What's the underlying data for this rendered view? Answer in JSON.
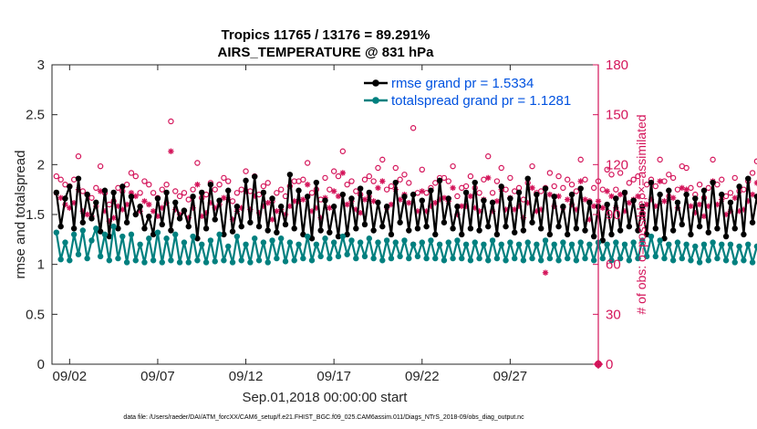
{
  "chart_data": {
    "type": "line",
    "title": "Tropics 11765 / 13176 = 89.291%",
    "subtitle": "AIRS_TEMPERATURE @ 831 hPa",
    "xlabel": "Sep.01,2018 00:00:00 start",
    "ylabel_left": "rmse and totalspread",
    "ylabel_right": "# of obs: o=possible; ×=assimilated",
    "footnote": "data file: /Users/raeder/DAI/ATM_forcXX/CAM6_setup/f.e21.FHIST_BGC.f09_025.CAM6assim.011/Diags_NTrS_2018-09/obs_diag_output.nc",
    "xlim": [
      1.0,
      32.0
    ],
    "ylim_left": [
      0,
      3
    ],
    "ylim_right": [
      0,
      180
    ],
    "x_ticks": [
      {
        "value": 2,
        "label": "09/02"
      },
      {
        "value": 7,
        "label": "09/07"
      },
      {
        "value": 12,
        "label": "09/12"
      },
      {
        "value": 17,
        "label": "09/17"
      },
      {
        "value": 22,
        "label": "09/22"
      },
      {
        "value": 27,
        "label": "09/27"
      }
    ],
    "y_ticks_left": [
      "0",
      "0.5",
      "1",
      "1.5",
      "2",
      "2.5",
      "3"
    ],
    "y_ticks_right": [
      "0",
      "30",
      "60",
      "90",
      "120",
      "150",
      "180"
    ],
    "x_start": 1.25,
    "x_step": 0.25,
    "grid": false,
    "legend_position": "top-right",
    "series": [
      {
        "name": "rmse grand pr = 1.5334",
        "axis": "left",
        "color": "#000000",
        "marker": "filled-circle",
        "values": [
          1.72,
          1.38,
          1.66,
          1.78,
          1.36,
          1.86,
          1.42,
          1.7,
          1.46,
          1.62,
          1.33,
          1.74,
          1.28,
          1.72,
          1.36,
          1.78,
          1.42,
          1.68,
          1.5,
          1.58,
          1.36,
          1.48,
          1.3,
          1.66,
          1.4,
          1.72,
          1.34,
          1.62,
          1.46,
          1.54,
          1.38,
          1.68,
          1.26,
          1.72,
          1.36,
          1.8,
          1.45,
          1.64,
          1.3,
          1.74,
          1.33,
          1.58,
          1.38,
          1.84,
          1.42,
          1.88,
          1.38,
          1.72,
          1.34,
          1.66,
          1.32,
          1.58,
          1.4,
          1.9,
          1.36,
          1.74,
          1.3,
          1.68,
          1.26,
          1.82,
          1.34,
          1.64,
          1.32,
          1.58,
          1.28,
          1.7,
          1.3,
          1.66,
          1.36,
          1.76,
          1.4,
          1.72,
          1.34,
          1.62,
          1.38,
          1.58,
          1.3,
          1.82,
          1.42,
          1.68,
          1.34,
          1.7,
          1.36,
          1.64,
          1.38,
          1.74,
          1.3,
          1.84,
          1.42,
          1.66,
          1.36,
          1.58,
          1.3,
          1.72,
          1.36,
          1.82,
          1.34,
          1.64,
          1.38,
          1.62,
          1.3,
          1.78,
          1.38,
          1.66,
          1.32,
          1.72,
          1.34,
          1.86,
          1.42,
          1.7,
          1.36,
          1.76,
          1.3,
          1.68,
          1.38,
          1.58,
          1.3,
          1.7,
          1.36,
          1.76,
          1.34,
          1.62,
          1.28,
          1.58,
          1.24,
          1.6,
          1.3,
          1.66,
          1.34,
          1.72,
          1.38,
          1.64,
          1.34,
          1.58,
          1.3,
          1.82,
          1.36,
          1.7,
          1.26,
          1.74,
          1.34,
          1.62,
          1.4,
          1.7,
          1.3,
          1.66,
          1.38,
          1.74,
          1.32,
          1.82,
          1.36,
          1.7,
          1.28,
          1.62,
          1.36,
          1.78,
          1.3,
          1.86,
          1.42,
          1.68,
          1.34,
          1.86,
          1.36,
          1.4,
          1.36
        ]
      },
      {
        "name": "totalspread grand pr = 1.1281",
        "axis": "left",
        "color": "#00807f",
        "marker": "filled-circle",
        "values": [
          1.32,
          1.05,
          1.22,
          1.04,
          1.3,
          1.1,
          1.34,
          1.06,
          1.24,
          1.36,
          1.08,
          1.3,
          1.04,
          1.38,
          1.06,
          1.28,
          1.02,
          1.3,
          1.04,
          1.2,
          1.02,
          1.26,
          1.04,
          1.32,
          1.02,
          1.26,
          1.04,
          1.3,
          1.02,
          1.22,
          1.02,
          1.28,
          1.04,
          1.2,
          1.02,
          1.24,
          1.03,
          1.3,
          1.04,
          1.18,
          1.02,
          1.28,
          1.04,
          1.2,
          1.02,
          1.26,
          1.04,
          1.22,
          1.02,
          1.24,
          1.06,
          1.26,
          1.03,
          1.22,
          1.04,
          1.2,
          1.06,
          1.28,
          1.04,
          1.2,
          1.08,
          1.26,
          1.06,
          1.22,
          1.08,
          1.28,
          1.1,
          1.24,
          1.06,
          1.22,
          1.08,
          1.26,
          1.06,
          1.22,
          1.04,
          1.24,
          1.06,
          1.22,
          1.08,
          1.24,
          1.06,
          1.2,
          1.08,
          1.22,
          1.06,
          1.24,
          1.06,
          1.2,
          1.04,
          1.22,
          1.06,
          1.24,
          1.06,
          1.2,
          1.04,
          1.22,
          1.06,
          1.2,
          1.04,
          1.24,
          1.06,
          1.2,
          1.04,
          1.22,
          1.06,
          1.2,
          1.04,
          1.22,
          1.06,
          1.2,
          1.04,
          1.24,
          1.06,
          1.2,
          1.04,
          1.22,
          1.06,
          1.2,
          1.04,
          1.22,
          1.06,
          1.2,
          1.04,
          1.22,
          1.06,
          1.2,
          1.04,
          1.22,
          1.06,
          1.2,
          1.04,
          1.22,
          1.06,
          1.24,
          1.08,
          1.28,
          1.08,
          1.24,
          1.06,
          1.2,
          1.04,
          1.22,
          1.06,
          1.2,
          1.04,
          1.18,
          1.02,
          1.2,
          1.04,
          1.22,
          1.06,
          1.2,
          1.04,
          1.2,
          1.02,
          1.18,
          1.04,
          1.2,
          1.02,
          1.18,
          1.04,
          1.22,
          1.02,
          1.22,
          1.0,
          1.24,
          1.0
        ]
      },
      {
        "name": "possible",
        "axis": "right",
        "color": "#d4145a",
        "marker": "open-circle",
        "values": [
          113,
          111,
          108,
          107,
          111,
          125,
          104,
          102,
          100,
          106,
          119,
          103,
          96,
          98,
          106,
          104,
          108,
          115,
          113,
          103,
          110,
          108,
          103,
          100,
          105,
          108,
          146,
          104,
          101,
          103,
          99,
          105,
          121,
          100,
          102,
          109,
          105,
          108,
          112,
          110,
          98,
          103,
          105,
          116,
          104,
          113,
          102,
          107,
          109,
          98,
          103,
          105,
          101,
          107,
          110,
          110,
          111,
          121,
          103,
          105,
          99,
          112,
          105,
          116,
          113,
          128,
          108,
          110,
          104,
          102,
          111,
          113,
          110,
          118,
          123,
          105,
          107,
          118,
          111,
          114,
          109,
          142,
          103,
          117,
          103,
          106,
          109,
          112,
          112,
          110,
          119,
          101,
          106,
          107,
          113,
          106,
          103,
          111,
          125,
          103,
          110,
          118,
          105,
          112,
          104,
          106,
          99,
          109,
          119,
          103,
          104,
          106,
          115,
          107,
          113,
          106,
          111,
          108,
          104,
          123,
          111,
          98,
          106,
          110,
          105,
          117,
          114,
          105,
          115,
          103,
          109,
          111,
          113,
          101,
          108,
          111,
          107,
          123,
          110,
          114,
          112,
          105,
          119,
          118,
          106,
          102,
          108,
          100,
          106,
          123,
          108,
          111,
          101,
          103,
          112,
          104,
          105,
          110,
          115,
          122,
          107,
          108,
          103,
          106,
          140,
          107,
          98,
          117
        ]
      },
      {
        "name": "assimilated",
        "axis": "right",
        "color": "#d4145a",
        "marker": "asterisk",
        "values": [
          103,
          100,
          96,
          94,
          97,
          105,
          92,
          90,
          89,
          95,
          104,
          92,
          86,
          88,
          95,
          93,
          96,
          103,
          101,
          92,
          98,
          96,
          92,
          89,
          94,
          97,
          128,
          93,
          90,
          92,
          88,
          94,
          108,
          89,
          91,
          97,
          94,
          96,
          100,
          99,
          87,
          92,
          94,
          104,
          93,
          101,
          91,
          95,
          97,
          87,
          92,
          93,
          90,
          95,
          98,
          98,
          99,
          108,
          92,
          94,
          88,
          100,
          94,
          104,
          101,
          115,
          96,
          98,
          93,
          91,
          99,
          101,
          98,
          106,
          110,
          94,
          96,
          105,
          99,
          102,
          97,
          72,
          92,
          104,
          92,
          95,
          97,
          99,
          100,
          98,
          106,
          90,
          95,
          95,
          101,
          94,
          92,
          99,
          112,
          92,
          98,
          105,
          93,
          100,
          93,
          95,
          88,
          97,
          106,
          92,
          93,
          55,
          102,
          95,
          101,
          94,
          99,
          96,
          93,
          110,
          99,
          87,
          95,
          98,
          94,
          104,
          101,
          94,
          102,
          92,
          97,
          99,
          101,
          90,
          96,
          99,
          95,
          110,
          98,
          101,
          100,
          94,
          106,
          105,
          95,
          91,
          96,
          89,
          95,
          110,
          96,
          99,
          90,
          92,
          100,
          92,
          93,
          98,
          102,
          109,
          95,
          96,
          92,
          95,
          125,
          95,
          87,
          104
        ]
      }
    ],
    "right_axis_end_marker": {
      "x": 32.0,
      "value": 0
    }
  }
}
